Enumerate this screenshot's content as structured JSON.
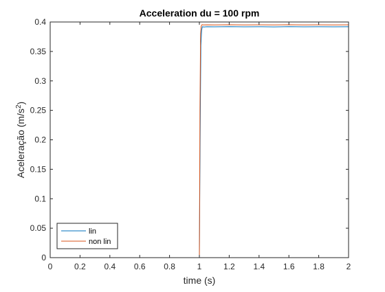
{
  "chart_data": {
    "type": "line",
    "title": "Acceleration du = 100 rpm",
    "xlabel": "time (s)",
    "ylabel_prefix": "Aceleração (m/s",
    "ylabel_sup": "2",
    "ylabel_suffix": ")",
    "xlim": [
      0,
      2
    ],
    "ylim": [
      0,
      0.4
    ],
    "xticks": [
      0,
      0.2,
      0.4,
      0.6,
      0.8,
      1,
      1.2,
      1.4,
      1.6,
      1.8,
      2
    ],
    "xtick_labels": [
      "0",
      "0.2",
      "0.4",
      "0.6",
      "0.8",
      "1",
      "1.2",
      "1.4",
      "1.6",
      "1.8",
      "2"
    ],
    "yticks": [
      0,
      0.05,
      0.1,
      0.15,
      0.2,
      0.25,
      0.3,
      0.35,
      0.4
    ],
    "ytick_labels": [
      "0",
      "0.05",
      "0.1",
      "0.15",
      "0.2",
      "0.25",
      "0.3",
      "0.35",
      "0.4"
    ],
    "grid": false,
    "legend_position": "bottom-left",
    "series": [
      {
        "name": "lin",
        "color": "#0072BD",
        "x": [
          0,
          1.0,
          1.005,
          1.01,
          1.015,
          1.02,
          1.03,
          1.05,
          1.1,
          1.2,
          1.3,
          1.4,
          1.5,
          1.6,
          1.7,
          1.8,
          1.9,
          2.0
        ],
        "y": [
          0,
          0,
          0.2,
          0.36,
          0.386,
          0.392,
          0.3915,
          0.392,
          0.3918,
          0.3921,
          0.3918,
          0.392,
          0.3917,
          0.3921,
          0.3918,
          0.392,
          0.3918,
          0.392
        ]
      },
      {
        "name": "non lin",
        "color": "#D95319",
        "x": [
          0,
          1.0,
          1.004,
          1.008,
          1.012,
          1.018,
          1.025,
          1.05,
          1.1,
          1.2,
          1.3,
          1.4,
          1.5,
          1.6,
          1.7,
          1.8,
          1.9,
          2.0
        ],
        "y": [
          0,
          0,
          0.25,
          0.38,
          0.393,
          0.3955,
          0.395,
          0.3952,
          0.395,
          0.3953,
          0.395,
          0.3952,
          0.395,
          0.3953,
          0.395,
          0.3952,
          0.395,
          0.3952
        ]
      }
    ]
  }
}
